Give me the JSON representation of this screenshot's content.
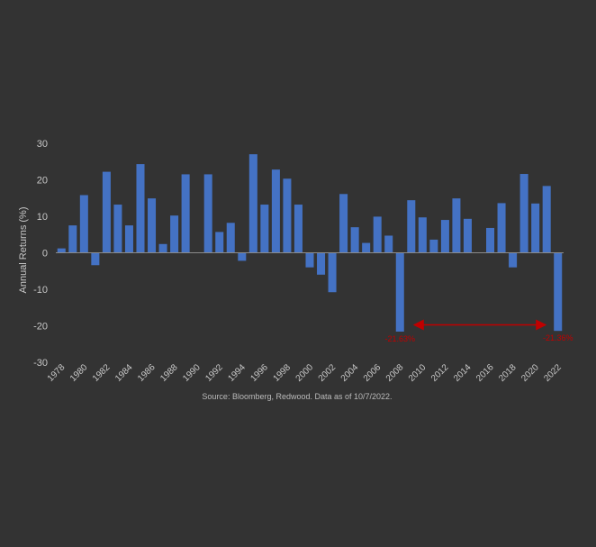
{
  "chart_data": {
    "type": "bar",
    "title": "",
    "xlabel": "",
    "ylabel": "Annual Returns (%)",
    "ylim": [
      -30,
      30
    ],
    "yticks": [
      30,
      20,
      10,
      0,
      -10,
      -20,
      -30
    ],
    "grid": false,
    "legend": "none",
    "bar_color": "#4472C4",
    "axis_text_color": "#C8C8C8",
    "annotation_color": "#C00000",
    "x_tick_labels": [
      "1978",
      "1980",
      "1982",
      "1984",
      "1986",
      "1988",
      "1990",
      "1992",
      "1994",
      "1996",
      "1998",
      "2000",
      "2002",
      "2004",
      "2006",
      "2008",
      "2010",
      "2012",
      "2014",
      "2016",
      "2018",
      "2020",
      "2022"
    ],
    "categories": [
      "1978",
      "1979",
      "1980",
      "1981",
      "1982",
      "1983",
      "1984",
      "1985",
      "1986",
      "1987",
      "1988",
      "1989",
      "1990",
      "1991",
      "1992",
      "1993",
      "1994",
      "1995",
      "1996",
      "1997",
      "1998",
      "1999",
      "2000",
      "2001",
      "2002",
      "2003",
      "2004",
      "2005",
      "2006",
      "2007",
      "2008",
      "2009",
      "2010",
      "2011",
      "2012",
      "2013",
      "2014",
      "2015",
      "2016",
      "2017",
      "2018",
      "2019",
      "2020",
      "2021",
      "2022"
    ],
    "values": [
      1.2,
      7.5,
      15.8,
      -3.4,
      22.2,
      13.2,
      7.5,
      24.3,
      14.9,
      2.4,
      10.2,
      21.5,
      null,
      21.5,
      5.7,
      8.2,
      -2.2,
      27.0,
      13.2,
      22.8,
      20.3,
      13.2,
      -4.0,
      -6.0,
      -10.8,
      16.1,
      7.0,
      2.7,
      9.9,
      4.7,
      -21.6,
      14.4,
      9.7,
      3.6,
      9.0,
      14.9,
      9.3,
      null,
      6.8,
      13.6,
      -4.0,
      21.6,
      13.5,
      18.3,
      -21.4
    ],
    "annotations": [
      {
        "category": "2008",
        "label": "-21.63%"
      },
      {
        "category": "2022",
        "label": "-21.36%"
      }
    ],
    "arrow": {
      "from": "2008",
      "to": "2022",
      "value": -20
    }
  },
  "source_note": "Source: Bloomberg, Redwood. Data as of 10/7/2022."
}
